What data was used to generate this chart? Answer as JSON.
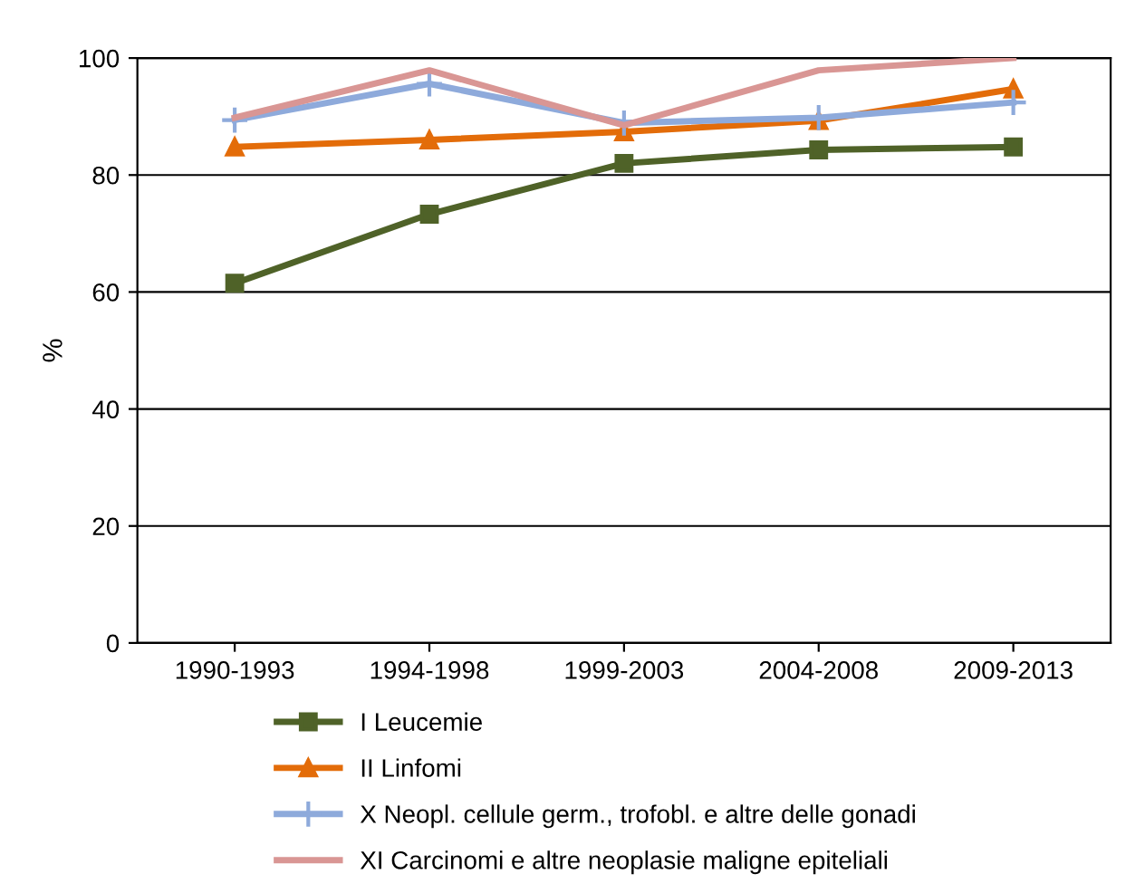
{
  "chart_data": {
    "type": "line",
    "ylabel": "%",
    "categories": [
      "1990-1993",
      "1994-1998",
      "1999-2003",
      "2004-2008",
      "2009-2013"
    ],
    "ylim": [
      0,
      100
    ],
    "yticks": [
      0,
      20,
      40,
      60,
      80,
      100
    ],
    "grid": "y",
    "legend": "bottom",
    "series": [
      {
        "name": "I Leucemie",
        "color": "#4f6228",
        "marker": "square",
        "values": [
          61.5,
          73.3,
          82.0,
          84.3,
          84.8
        ]
      },
      {
        "name": "II Linfomi",
        "color": "#e36c09",
        "marker": "triangle",
        "values": [
          84.8,
          86.0,
          87.4,
          89.3,
          94.7
        ]
      },
      {
        "name": "X Neopl. cellule germ., trofobl. e altre delle gonadi",
        "color": "#8eaadb",
        "marker": "cross",
        "values": [
          89.4,
          95.6,
          88.9,
          89.8,
          92.4
        ]
      },
      {
        "name": "XI Carcinomi e altre neoplasie maligne epiteliali",
        "color": "#d99694",
        "marker": "none",
        "values": [
          89.8,
          97.9,
          88.5,
          97.9,
          100
        ]
      }
    ]
  }
}
